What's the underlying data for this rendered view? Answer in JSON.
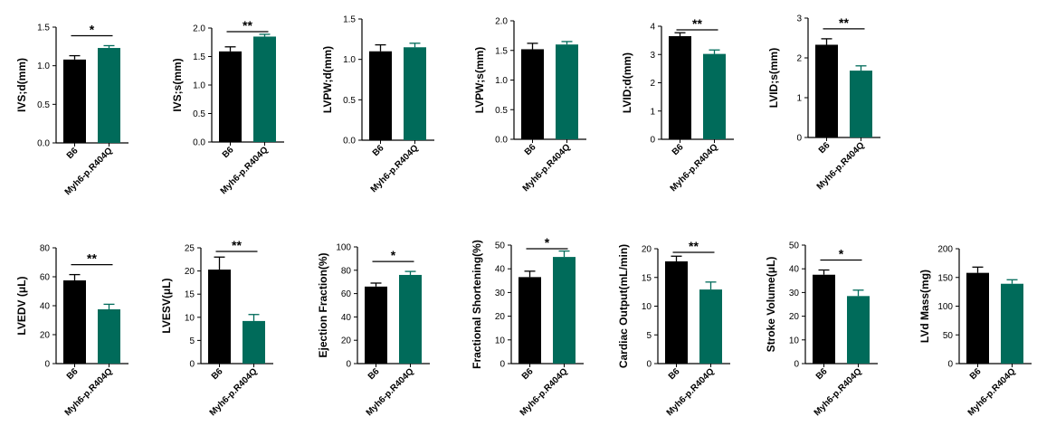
{
  "colors": {
    "control": "#000000",
    "mutant": "#006b5a",
    "axis": "#000000"
  },
  "chart_data": [
    {
      "type": "bar",
      "ylabel": "IVS;d(mm)",
      "categories": [
        "B6",
        "Myh6-p.R404Q"
      ],
      "values": [
        1.08,
        1.23
      ],
      "errors": [
        0.05,
        0.03
      ],
      "ylim": [
        0.0,
        1.5
      ],
      "ticks": [
        "0.0",
        "0.5",
        "1.0",
        "1.5"
      ],
      "significance": "*"
    },
    {
      "type": "bar",
      "ylabel": "IVS;s(mm)",
      "categories": [
        "B6",
        "Myh6-p.R404Q"
      ],
      "values": [
        1.59,
        1.85
      ],
      "errors": [
        0.08,
        0.04
      ],
      "ylim": [
        0.0,
        2.0
      ],
      "ticks": [
        "0.0",
        "0.5",
        "1.0",
        "1.5",
        "2.0"
      ],
      "significance": "**"
    },
    {
      "type": "bar",
      "ylabel": "LVPW;d(mm)",
      "categories": [
        "B6",
        "Myh6-p.R404Q"
      ],
      "values": [
        1.1,
        1.15
      ],
      "errors": [
        0.08,
        0.05
      ],
      "ylim": [
        0.0,
        1.5
      ],
      "ticks": [
        "0.0",
        "0.5",
        "1.0",
        "1.5"
      ],
      "significance": ""
    },
    {
      "type": "bar",
      "ylabel": "LVPW;s(mm)",
      "categories": [
        "B6",
        "Myh6-p.R404Q"
      ],
      "values": [
        1.52,
        1.6
      ],
      "errors": [
        0.1,
        0.05
      ],
      "ylim": [
        0.0,
        2.0
      ],
      "ticks": [
        "0.0",
        "0.5",
        "1.0",
        "1.5",
        "2.0"
      ],
      "significance": ""
    },
    {
      "type": "bar",
      "ylabel": "LVID;d(mm)",
      "categories": [
        "B6",
        "Myh6-p.R404Q"
      ],
      "values": [
        3.65,
        3.02
      ],
      "errors": [
        0.12,
        0.14
      ],
      "ylim": [
        0,
        4
      ],
      "ticks": [
        "0",
        "1",
        "2",
        "3",
        "4"
      ],
      "significance": "**"
    },
    {
      "type": "bar",
      "ylabel": "LVID;s(mm)",
      "categories": [
        "B6",
        "Myh6-p.R404Q"
      ],
      "values": [
        2.33,
        1.68
      ],
      "errors": [
        0.15,
        0.12
      ],
      "ylim": [
        0,
        3
      ],
      "ticks": [
        "0",
        "1",
        "2",
        "3"
      ],
      "significance": "**"
    },
    {
      "type": "bar",
      "ylabel": "LVEDV (μL)",
      "categories": [
        "B6",
        "Myh6-p.R404Q"
      ],
      "values": [
        57.5,
        37.5
      ],
      "errors": [
        4.0,
        3.5
      ],
      "ylim": [
        0,
        80
      ],
      "ticks": [
        "0",
        "20",
        "40",
        "60",
        "80"
      ],
      "significance": "**"
    },
    {
      "type": "bar",
      "ylabel": "LVESV(μL)",
      "categories": [
        "B6",
        "Myh6-p.R404Q"
      ],
      "values": [
        20.3,
        9.2
      ],
      "errors": [
        2.7,
        1.4
      ],
      "ylim": [
        0,
        25
      ],
      "ticks": [
        "0",
        "5",
        "10",
        "15",
        "20",
        "25"
      ],
      "significance": "**"
    },
    {
      "type": "bar",
      "ylabel": "Ejection Fraction(%)",
      "categories": [
        "B6",
        "Myh6-p.R404Q"
      ],
      "values": [
        66,
        76
      ],
      "errors": [
        3,
        3
      ],
      "ylim": [
        0,
        100
      ],
      "ticks": [
        "0",
        "20",
        "40",
        "60",
        "80",
        "100"
      ],
      "significance": "*"
    },
    {
      "type": "bar",
      "ylabel": "Fractional Shortening(%)",
      "categories": [
        "B6",
        "Myh6-p.R404Q"
      ],
      "values": [
        36.5,
        45
      ],
      "errors": [
        2.5,
        2.5
      ],
      "ylim": [
        0,
        50
      ],
      "ticks": [
        "0",
        "10",
        "20",
        "30",
        "40",
        "50"
      ],
      "significance": "*"
    },
    {
      "type": "bar",
      "ylabel": "Cardiac Output(mL/min)",
      "categories": [
        "B6",
        "Myh6-p.R404Q"
      ],
      "values": [
        17.8,
        12.9
      ],
      "errors": [
        0.9,
        1.3
      ],
      "ylim": [
        0,
        20
      ],
      "ticks": [
        "0",
        "5",
        "10",
        "15",
        "20"
      ],
      "significance": "**"
    },
    {
      "type": "bar",
      "ylabel": "Stroke Volume(μL)",
      "categories": [
        "B6",
        "Myh6-p.R404Q"
      ],
      "values": [
        37.5,
        28.5
      ],
      "errors": [
        2.0,
        2.5
      ],
      "ylim": [
        0,
        50
      ],
      "ticks": [
        "0",
        "10",
        "20",
        "30",
        "40",
        "50"
      ],
      "significance": "*"
    },
    {
      "type": "bar",
      "ylabel": "LVd Mass(mg)",
      "categories": [
        "B6",
        "Myh6-p.R404Q"
      ],
      "values": [
        158,
        139
      ],
      "errors": [
        10,
        7
      ],
      "ylim": [
        0,
        200
      ],
      "ticks": [
        "0",
        "50",
        "100",
        "150",
        "200"
      ],
      "significance": ""
    }
  ]
}
